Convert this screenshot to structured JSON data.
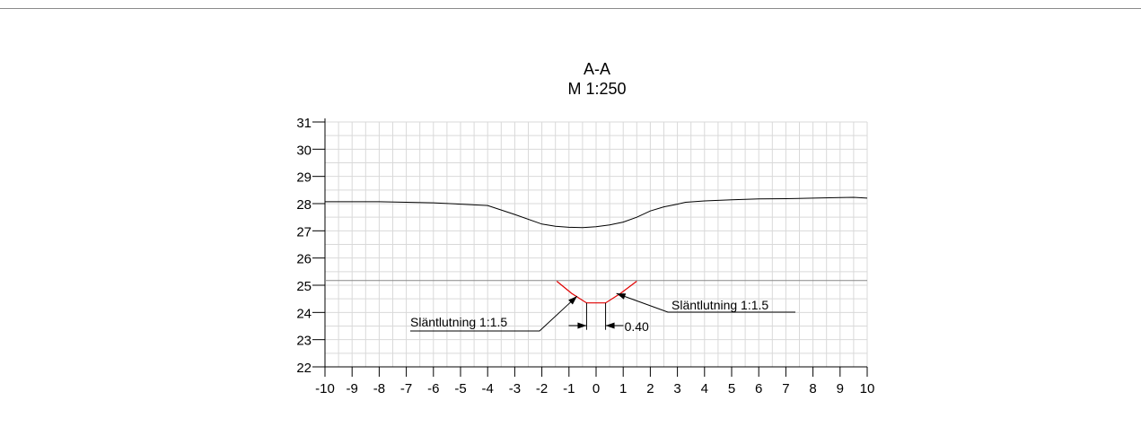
{
  "title": "A-A",
  "scale": "M 1:250",
  "chart_data": {
    "type": "line",
    "x_ticks": [
      -10,
      -9,
      -8,
      -7,
      -6,
      -5,
      -4,
      -3,
      -2,
      -1,
      0,
      1,
      2,
      3,
      4,
      5,
      6,
      7,
      8,
      9,
      10
    ],
    "y_ticks": [
      22,
      23,
      24,
      25,
      26,
      27,
      28,
      29,
      30,
      31
    ],
    "xlim": [
      -10,
      10
    ],
    "ylim": [
      22,
      31
    ],
    "grid": true,
    "series": [
      {
        "color": "#000000",
        "points": [
          [
            -10,
            28.07
          ],
          [
            -8,
            28.07
          ],
          [
            -6,
            28.03
          ],
          [
            -4,
            27.93
          ],
          [
            -3,
            27.6
          ],
          [
            -2,
            27.25
          ],
          [
            -1.5,
            27.17
          ],
          [
            -1,
            27.13
          ],
          [
            -0.5,
            27.12
          ],
          [
            0,
            27.15
          ],
          [
            0.5,
            27.22
          ],
          [
            1,
            27.32
          ],
          [
            1.5,
            27.5
          ],
          [
            2,
            27.73
          ],
          [
            2.5,
            27.88
          ],
          [
            3,
            27.98
          ],
          [
            3.3,
            28.05
          ],
          [
            4,
            28.1
          ],
          [
            5,
            28.14
          ],
          [
            6,
            28.17
          ],
          [
            7,
            28.18
          ],
          [
            8,
            28.2
          ],
          [
            9,
            28.22
          ],
          [
            9.5,
            28.23
          ],
          [
            10,
            28.2
          ]
        ]
      },
      {
        "color": "#888888",
        "points": [
          [
            -10,
            25.17
          ],
          [
            10,
            25.17
          ]
        ]
      },
      {
        "color": "#e00000",
        "points": [
          [
            -1.45,
            25.15
          ],
          [
            -0.9,
            24.7
          ],
          [
            -0.35,
            24.35
          ],
          [
            0.35,
            24.35
          ],
          [
            0.9,
            24.7
          ],
          [
            1.5,
            25.15
          ]
        ]
      }
    ],
    "annotations": [
      {
        "text": "Släntlutning 1:1.5",
        "target": [
          -0.7,
          24.6
        ]
      },
      {
        "text": "Släntlutning 1:1.5",
        "target": [
          0.75,
          24.7
        ]
      },
      {
        "text": "0.40"
      }
    ]
  }
}
